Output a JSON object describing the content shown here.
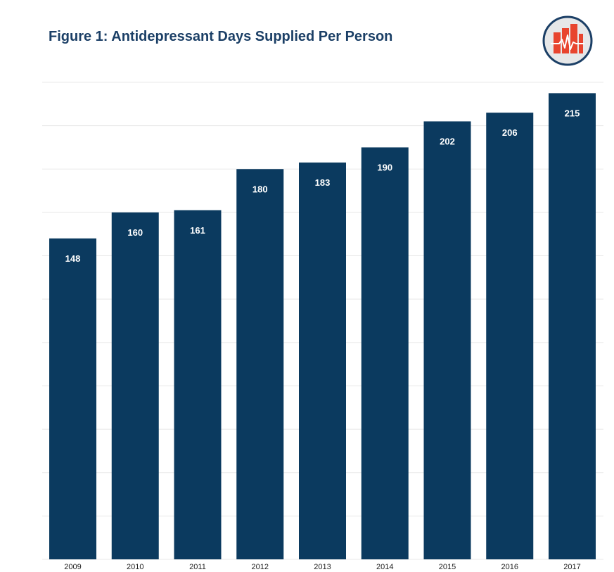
{
  "header": {
    "title": "Figure 1: Antidepressant Days Supplied Per Person",
    "logo_icon": "bar-chart-heartbeat-icon"
  },
  "colors": {
    "bar": "#0b3a5f",
    "title": "#1b3f66",
    "gridline": "#e8e8e8",
    "logo_ring": "#1b3f66",
    "logo_fill": "#e6e7e8",
    "logo_bars": "#e8442e"
  },
  "chart_data": {
    "type": "bar",
    "title": "Figure 1: Antidepressant Days Supplied Per Person",
    "xlabel": "",
    "ylabel": "",
    "categories": [
      "2009",
      "2010",
      "2011",
      "2012",
      "2013",
      "2014",
      "2015",
      "2016",
      "2017"
    ],
    "values": [
      148,
      160,
      161,
      180,
      183,
      190,
      202,
      206,
      215
    ],
    "ylim": [
      0,
      220
    ],
    "grid": true,
    "legend": "none",
    "data_labels": true
  }
}
